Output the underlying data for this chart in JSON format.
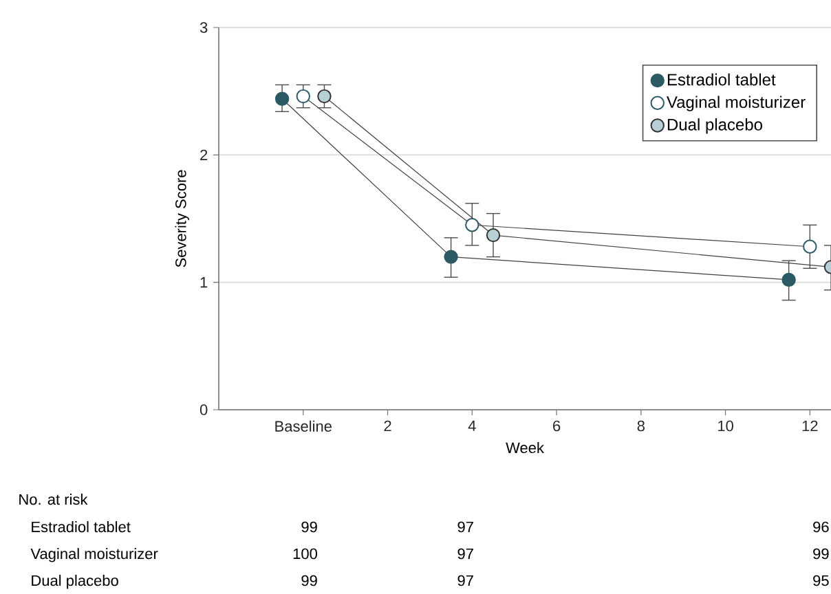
{
  "chart_data": {
    "type": "line",
    "xlabel": "Week",
    "ylabel": "Severity Score",
    "xlim": [
      -2,
      12.5
    ],
    "ylim": [
      0,
      3
    ],
    "xticks": [
      {
        "value": 0,
        "label": "Baseline"
      },
      2,
      4,
      6,
      8,
      10,
      12
    ],
    "yticks": [
      0,
      1,
      2,
      3
    ],
    "grid": "y",
    "legend": "top right",
    "marker": "circle",
    "series": [
      {
        "name": "Estradiol tablet",
        "color": "#2b5a64",
        "x": [
          -0.5,
          3.5,
          11.5
        ],
        "values": [
          2.44,
          1.2,
          1.02
        ],
        "errors": [
          [
            2.34,
            2.55
          ],
          [
            1.04,
            1.35
          ],
          [
            0.86,
            1.17
          ]
        ]
      },
      {
        "name": "Vaginal moisturizer",
        "color": "#ffffff",
        "x": [
          0,
          4,
          12
        ],
        "values": [
          2.46,
          1.45,
          1.28
        ],
        "errors": [
          [
            2.37,
            2.55
          ],
          [
            1.29,
            1.62
          ],
          [
            1.11,
            1.45
          ]
        ]
      },
      {
        "name": "Dual placebo",
        "color": "#b9cfd6",
        "x": [
          0.5,
          4.5,
          12.5
        ],
        "values": [
          2.46,
          1.37,
          1.12
        ],
        "errors": [
          [
            2.37,
            2.55
          ],
          [
            1.2,
            1.54
          ],
          [
            0.94,
            1.29
          ]
        ]
      }
    ],
    "annotations": [
      "No. at risk",
      "Estradiol tablet",
      "99",
      "97",
      "96",
      "Vaginal moisturizer",
      "100",
      "97",
      "99",
      "Dual placebo",
      "99",
      "97",
      "95"
    ]
  }
}
